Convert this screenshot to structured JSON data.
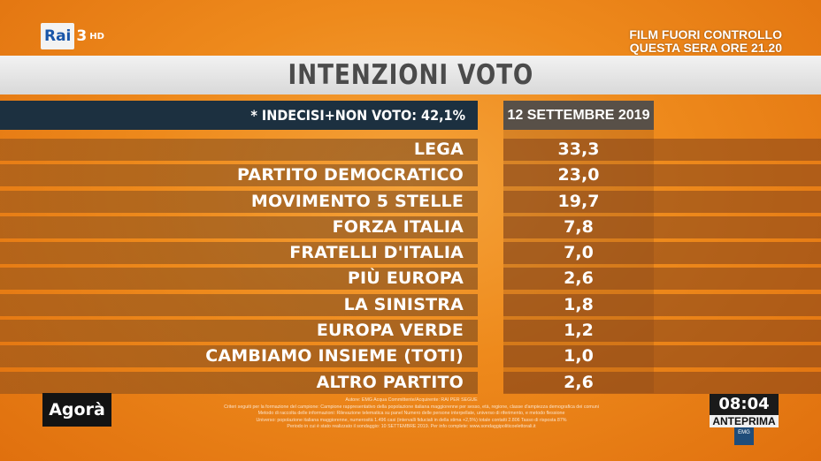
{
  "channel": {
    "logo": "Rai",
    "number": "3",
    "quality": "HD"
  },
  "promo": {
    "line1": "FILM FUORI CONTROLLO",
    "line2": "QUESTA SERA ORE 21.20"
  },
  "title": "INTENZIONI VOTO",
  "header": {
    "note": "* INDECISI+NON VOTO: 42,1%",
    "date": "12 SETTEMBRE 2019"
  },
  "rows": [
    {
      "party": "LEGA",
      "value": "33,3"
    },
    {
      "party": "PARTITO DEMOCRATICO",
      "value": "23,0"
    },
    {
      "party": "MOVIMENTO 5 STELLE",
      "value": "19,7"
    },
    {
      "party": "FORZA ITALIA",
      "value": "7,8"
    },
    {
      "party": "FRATELLI D'ITALIA",
      "value": "7,0"
    },
    {
      "party": "PIÙ EUROPA",
      "value": "2,6"
    },
    {
      "party": "LA SINISTRA",
      "value": "1,8"
    },
    {
      "party": "EUROPA VERDE",
      "value": "1,2"
    },
    {
      "party": "CAMBIAMO INSIEME (TOTI)",
      "value": "1,0"
    },
    {
      "party": "ALTRO PARTITO",
      "value": "2,6"
    }
  ],
  "show_logo": "Agorà",
  "clock": {
    "time": "08:04",
    "label": "ANTEPRIMA",
    "brand": "EMG"
  },
  "footnote_lines": [
    "Autore: EMG Acqua Committente/Acquirente: RAI PER SEGUE",
    "Criteri seguiti per la formazione del campione: Campione rappresentativo della popolazione italiana maggiorenne per sesso, età, regione, classe d'ampiezza demografica dei comuni",
    "Metodo di raccolta delle informazioni: Rilevazione telematica su panel Numero delle persone interpellate, universo di riferimento, e metodo flessione",
    "Universo: popolazione italiana maggiorenne, numerosità 1.496 casi (intervalli fiduciali in della stima +2,5%) totale contatti 2.806 Tasso di risposta 87%",
    "Periodo in cui è stato realizzato il sondaggio: 10 SETTEMBRE 2019. Per info complete: www.sondaggipoliticoelettorali.it"
  ]
}
